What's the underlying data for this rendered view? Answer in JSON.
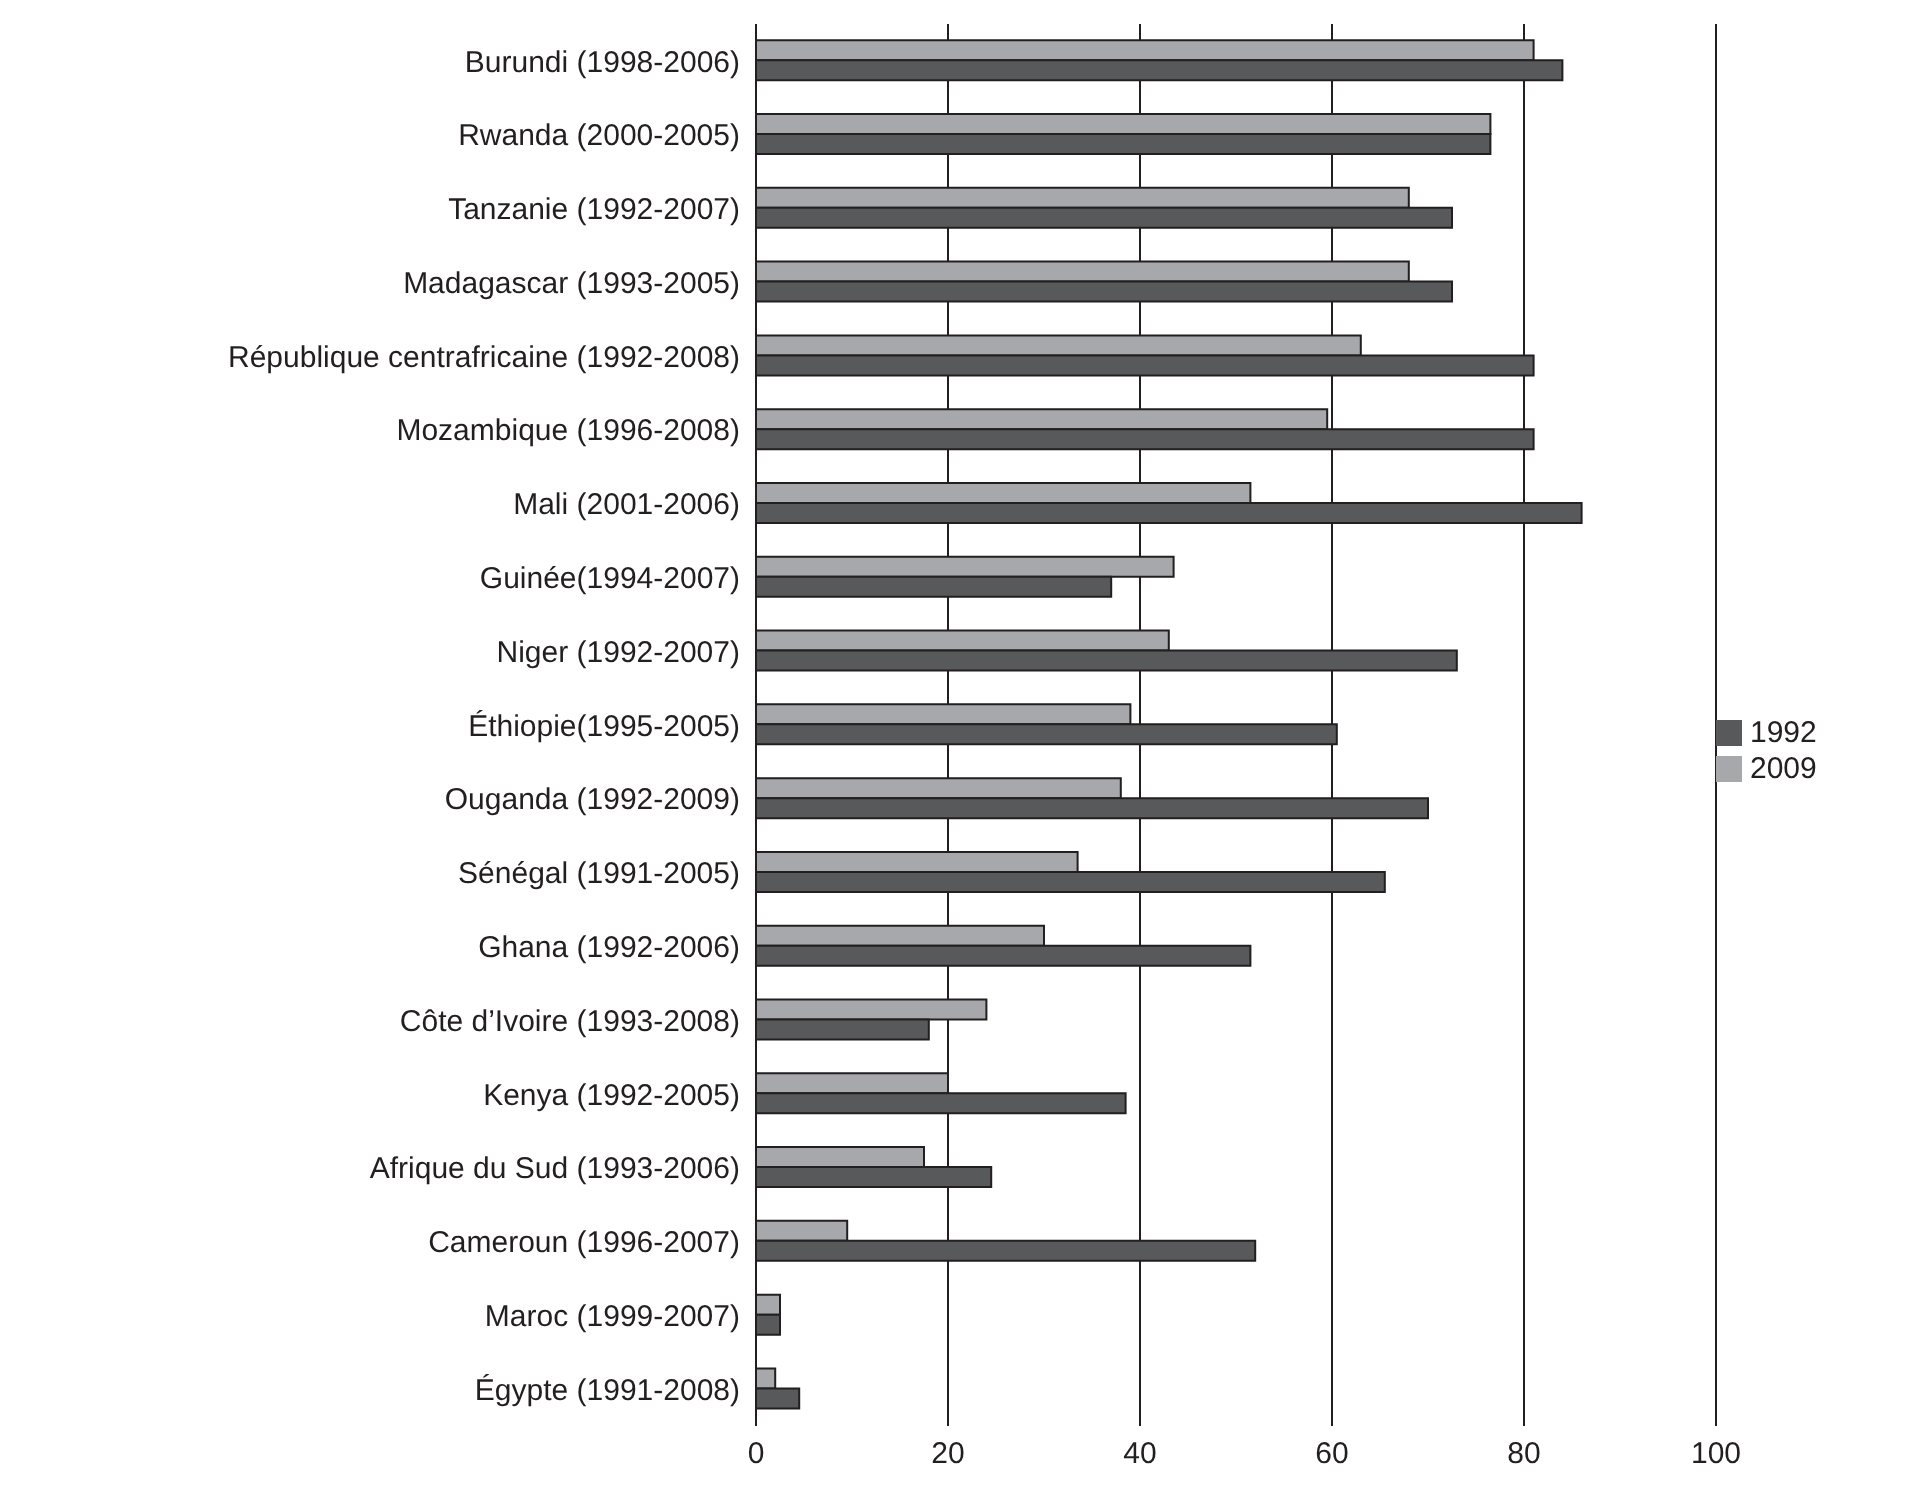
{
  "chart_data": {
    "type": "bar",
    "orientation": "horizontal",
    "categories": [
      "Burundi (1998-2006)",
      "Rwanda (2000-2005)",
      "Tanzanie (1992-2007)",
      "Madagascar (1993-2005)",
      "République centrafricaine  (1992-2008)",
      "Mozambique (1996-2008)",
      "Mali (2001-2006)",
      "Guinée(1994-2007)",
      "Niger (1992-2007)",
      "Éthiopie(1995-2005)",
      "Ouganda (1992-2009)",
      "Sénégal (1991-2005)",
      "Ghana (1992-2006)",
      "Côte d’Ivoire (1993-2008)",
      "Kenya (1992-2005)",
      "Afrique du Sud (1993-2006)",
      "Cameroun (1996-2007)",
      "Maroc (1999-2007)",
      "Égypte (1991-2008)"
    ],
    "series": [
      {
        "name": "2009",
        "color": "#a6a8ab",
        "values": [
          81,
          76.5,
          68,
          68,
          63,
          59.5,
          51.5,
          43.5,
          43,
          39,
          38,
          33.5,
          30,
          24,
          20,
          17.5,
          9.5,
          2.5,
          2
        ]
      },
      {
        "name": "1992",
        "color": "#58595b",
        "values": [
          84,
          76.5,
          72.5,
          72.5,
          81,
          81,
          86,
          37,
          73,
          60.5,
          70,
          65.5,
          51.5,
          18,
          38.5,
          24.5,
          52,
          2.5,
          4.5
        ]
      }
    ],
    "xlim": [
      0,
      100
    ],
    "xticks": [
      0,
      20,
      40,
      60,
      80,
      100
    ],
    "grid": "x",
    "legend": "right"
  }
}
